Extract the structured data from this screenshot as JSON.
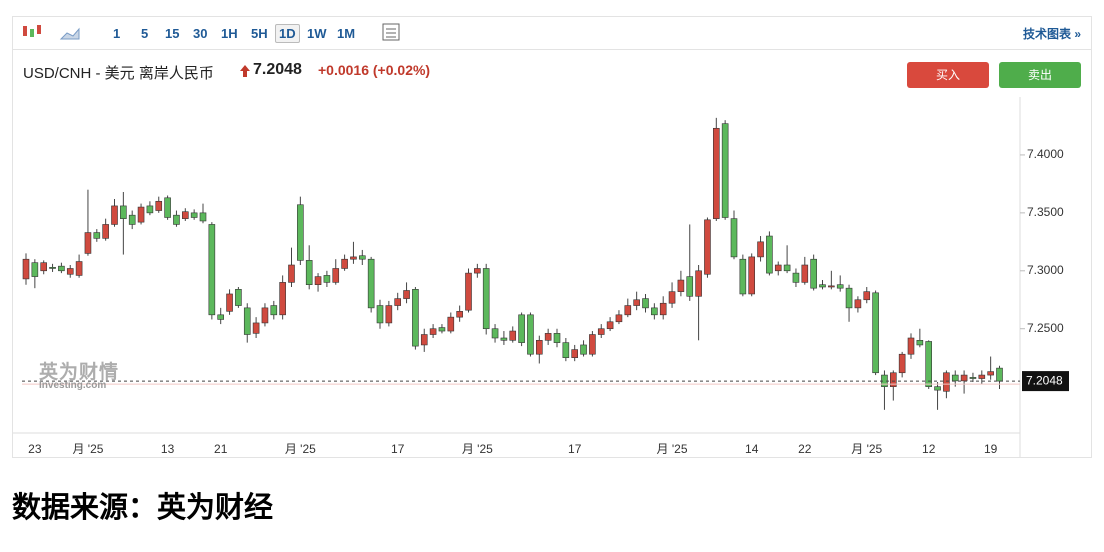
{
  "toolbar": {
    "intervals": [
      "1",
      "5",
      "15",
      "30",
      "1H",
      "5H",
      "1D",
      "1W",
      "1M"
    ],
    "active": "1D",
    "technical": "技术图表 »"
  },
  "header": {
    "symbol": "USD/CNH - 美元 离岸人民币",
    "price": "7.2048",
    "change": "+0.0016",
    "change_pct": "(+0.02%)",
    "buy": "买入",
    "sell": "卖出"
  },
  "watermark": {
    "cn": "英为财情",
    "en": "Investing.com"
  },
  "chart_data": {
    "type": "candlestick",
    "up_color": "#d04a3f",
    "down_color": "#5cb85c",
    "ylim": [
      7.16,
      7.45
    ],
    "yticks": [
      {
        "value": 7.25,
        "label": "7.2500"
      },
      {
        "value": 7.3,
        "label": "7.3000"
      },
      {
        "value": 7.35,
        "label": "7.3500"
      },
      {
        "value": 7.4,
        "label": "7.4000"
      }
    ],
    "last_price": 7.2048,
    "categories": [
      null,
      "23",
      null,
      null,
      null,
      null,
      null,
      "月 '25",
      null,
      null,
      null,
      null,
      null,
      null,
      null,
      null,
      "13",
      null,
      null,
      null,
      null,
      null,
      "21",
      null,
      null,
      null,
      null,
      null,
      null,
      null,
      null,
      "月 '25",
      null,
      null,
      null,
      null,
      null,
      null,
      null,
      null,
      null,
      null,
      "17",
      null,
      null,
      null,
      null,
      null,
      null,
      null,
      null,
      "月 '25",
      null,
      null,
      null,
      null,
      null,
      null,
      null,
      null,
      null,
      null,
      "17",
      null,
      null,
      null,
      null,
      null,
      null,
      null,
      null,
      null,
      null,
      "月 '25",
      null,
      null,
      null,
      null,
      null,
      null,
      null,
      null,
      "14",
      null,
      null,
      null,
      null,
      null,
      "22",
      null,
      null,
      null,
      null,
      null,
      null,
      "月 '25",
      null,
      null,
      null,
      null,
      null,
      null,
      "12",
      null,
      null,
      null,
      null,
      null,
      null,
      "19",
      null
    ],
    "ohlc": [
      [
        7.293,
        7.315,
        7.288,
        7.31
      ],
      [
        7.307,
        7.31,
        7.285,
        7.295
      ],
      [
        7.3,
        7.309,
        7.297,
        7.307
      ],
      [
        7.303,
        7.306,
        7.299,
        7.302
      ],
      [
        7.304,
        7.307,
        7.298,
        7.3
      ],
      [
        7.297,
        7.305,
        7.294,
        7.302
      ],
      [
        7.296,
        7.314,
        7.294,
        7.308
      ],
      [
        7.315,
        7.37,
        7.313,
        7.333
      ],
      [
        7.333,
        7.336,
        7.325,
        7.328
      ],
      [
        7.328,
        7.345,
        7.326,
        7.34
      ],
      [
        7.34,
        7.362,
        7.338,
        7.356
      ],
      [
        7.356,
        7.368,
        7.314,
        7.345
      ],
      [
        7.348,
        7.352,
        7.336,
        7.34
      ],
      [
        7.342,
        7.358,
        7.34,
        7.355
      ],
      [
        7.356,
        7.36,
        7.348,
        7.35
      ],
      [
        7.352,
        7.364,
        7.35,
        7.36
      ],
      [
        7.363,
        7.365,
        7.344,
        7.346
      ],
      [
        7.348,
        7.352,
        7.338,
        7.34
      ],
      [
        7.345,
        7.354,
        7.343,
        7.351
      ],
      [
        7.35,
        7.353,
        7.344,
        7.346
      ],
      [
        7.35,
        7.358,
        7.341,
        7.343
      ],
      [
        7.34,
        7.342,
        7.258,
        7.262
      ],
      [
        7.262,
        7.268,
        7.254,
        7.258
      ],
      [
        7.265,
        7.284,
        7.262,
        7.28
      ],
      [
        7.284,
        7.286,
        7.268,
        7.27
      ],
      [
        7.268,
        7.272,
        7.238,
        7.245
      ],
      [
        7.246,
        7.26,
        7.242,
        7.255
      ],
      [
        7.255,
        7.272,
        7.252,
        7.268
      ],
      [
        7.27,
        7.274,
        7.258,
        7.262
      ],
      [
        7.262,
        7.296,
        7.258,
        7.29
      ],
      [
        7.29,
        7.32,
        7.286,
        7.305
      ],
      [
        7.357,
        7.364,
        7.305,
        7.309
      ],
      [
        7.309,
        7.322,
        7.284,
        7.288
      ],
      [
        7.288,
        7.298,
        7.282,
        7.295
      ],
      [
        7.296,
        7.3,
        7.286,
        7.29
      ],
      [
        7.29,
        7.31,
        7.288,
        7.302
      ],
      [
        7.302,
        7.314,
        7.3,
        7.31
      ],
      [
        7.31,
        7.325,
        7.306,
        7.312
      ],
      [
        7.313,
        7.318,
        7.305,
        7.31
      ],
      [
        7.31,
        7.312,
        7.264,
        7.268
      ],
      [
        7.27,
        7.275,
        7.25,
        7.255
      ],
      [
        7.255,
        7.274,
        7.252,
        7.27
      ],
      [
        7.27,
        7.281,
        7.266,
        7.276
      ],
      [
        7.276,
        7.29,
        7.272,
        7.283
      ],
      [
        7.284,
        7.286,
        7.232,
        7.235
      ],
      [
        7.236,
        7.25,
        7.23,
        7.245
      ],
      [
        7.245,
        7.254,
        7.242,
        7.25
      ],
      [
        7.251,
        7.254,
        7.246,
        7.248
      ],
      [
        7.248,
        7.264,
        7.246,
        7.26
      ],
      [
        7.26,
        7.27,
        7.256,
        7.265
      ],
      [
        7.266,
        7.302,
        7.264,
        7.298
      ],
      [
        7.298,
        7.306,
        7.294,
        7.302
      ],
      [
        7.302,
        7.306,
        7.245,
        7.25
      ],
      [
        7.25,
        7.254,
        7.238,
        7.242
      ],
      [
        7.242,
        7.248,
        7.236,
        7.24
      ],
      [
        7.24,
        7.252,
        7.238,
        7.248
      ],
      [
        7.262,
        7.264,
        7.235,
        7.238
      ],
      [
        7.262,
        7.264,
        7.226,
        7.228
      ],
      [
        7.228,
        7.244,
        7.22,
        7.24
      ],
      [
        7.24,
        7.25,
        7.236,
        7.246
      ],
      [
        7.246,
        7.25,
        7.234,
        7.238
      ],
      [
        7.238,
        7.242,
        7.222,
        7.225
      ],
      [
        7.225,
        7.236,
        7.222,
        7.232
      ],
      [
        7.236,
        7.24,
        7.226,
        7.228
      ],
      [
        7.228,
        7.248,
        7.226,
        7.245
      ],
      [
        7.245,
        7.254,
        7.242,
        7.25
      ],
      [
        7.25,
        7.26,
        7.248,
        7.256
      ],
      [
        7.256,
        7.266,
        7.254,
        7.262
      ],
      [
        7.262,
        7.276,
        7.26,
        7.27
      ],
      [
        7.27,
        7.282,
        7.266,
        7.275
      ],
      [
        7.276,
        7.28,
        7.264,
        7.268
      ],
      [
        7.268,
        7.272,
        7.258,
        7.262
      ],
      [
        7.262,
        7.278,
        7.258,
        7.272
      ],
      [
        7.272,
        7.29,
        7.268,
        7.282
      ],
      [
        7.282,
        7.3,
        7.278,
        7.292
      ],
      [
        7.295,
        7.34,
        7.274,
        7.278
      ],
      [
        7.278,
        7.305,
        7.24,
        7.3
      ],
      [
        7.297,
        7.346,
        7.294,
        7.344
      ],
      [
        7.345,
        7.432,
        7.343,
        7.423
      ],
      [
        7.427,
        7.43,
        7.344,
        7.346
      ],
      [
        7.345,
        7.352,
        7.31,
        7.312
      ],
      [
        7.31,
        7.314,
        7.278,
        7.28
      ],
      [
        7.28,
        7.315,
        7.278,
        7.312
      ],
      [
        7.312,
        7.33,
        7.308,
        7.325
      ],
      [
        7.33,
        7.334,
        7.296,
        7.298
      ],
      [
        7.3,
        7.308,
        7.296,
        7.305
      ],
      [
        7.305,
        7.322,
        7.298,
        7.3
      ],
      [
        7.298,
        7.302,
        7.286,
        7.29
      ],
      [
        7.29,
        7.312,
        7.288,
        7.305
      ],
      [
        7.31,
        7.314,
        7.283,
        7.285
      ],
      [
        7.288,
        7.292,
        7.284,
        7.286
      ],
      [
        7.286,
        7.3,
        7.284,
        7.287
      ],
      [
        7.288,
        7.296,
        7.282,
        7.285
      ],
      [
        7.285,
        7.288,
        7.256,
        7.268
      ],
      [
        7.268,
        7.278,
        7.264,
        7.275
      ],
      [
        7.275,
        7.286,
        7.272,
        7.282
      ],
      [
        7.281,
        7.283,
        7.21,
        7.212
      ],
      [
        7.21,
        7.214,
        7.18,
        7.2
      ],
      [
        7.2,
        7.214,
        7.188,
        7.212
      ],
      [
        7.212,
        7.23,
        7.208,
        7.228
      ],
      [
        7.228,
        7.246,
        7.224,
        7.242
      ],
      [
        7.24,
        7.25,
        7.234,
        7.236
      ],
      [
        7.239,
        7.24,
        7.198,
        7.2
      ],
      [
        7.2,
        7.204,
        7.18,
        7.197
      ],
      [
        7.196,
        7.214,
        7.19,
        7.212
      ],
      [
        7.21,
        7.214,
        7.2,
        7.205
      ],
      [
        7.205,
        7.214,
        7.194,
        7.21
      ],
      [
        7.208,
        7.212,
        7.204,
        7.207
      ],
      [
        7.207,
        7.214,
        7.202,
        7.21
      ],
      [
        7.21,
        7.226,
        7.206,
        7.213
      ],
      [
        7.216,
        7.218,
        7.198,
        7.2048
      ]
    ]
  },
  "caption": "数据来源：英为财经"
}
